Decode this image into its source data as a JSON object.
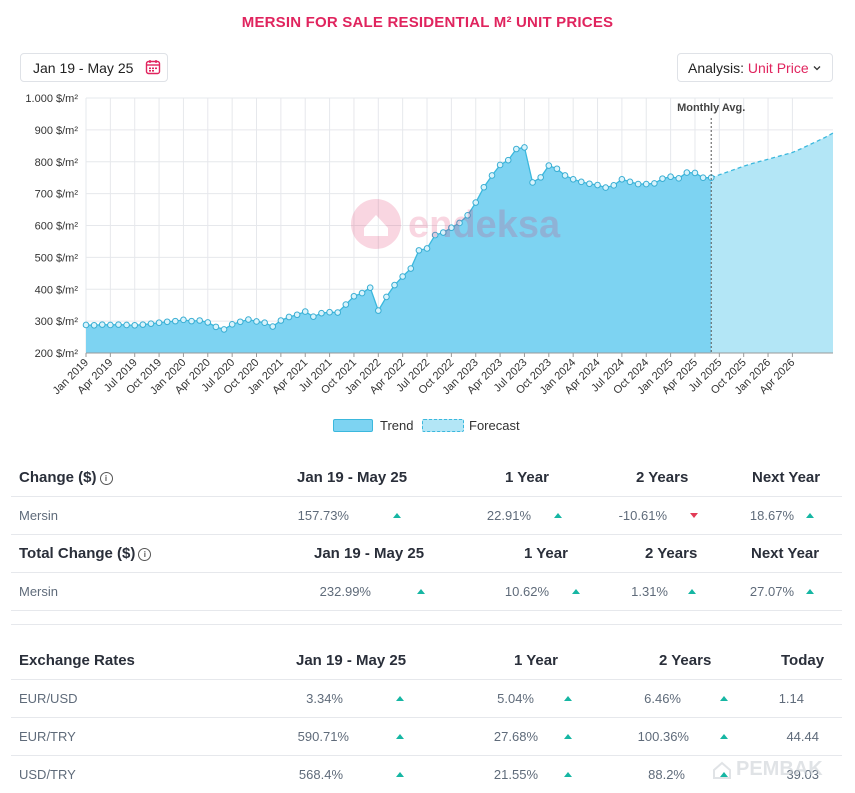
{
  "title": "MERSIN FOR SALE RESIDENTIAL M² UNIT PRICES",
  "date_range": {
    "label": "Jan 19 - May 25",
    "icon": "calendar-icon"
  },
  "analysis": {
    "label": "Analysis:",
    "value": "Unit Price",
    "icon": "chevron-down-icon"
  },
  "colors": {
    "accent": "#e0245e",
    "trend_fill": "#7dd3f2",
    "trend_line": "#3bb8dd",
    "forecast_fill": "#b3e6f6",
    "up": "#16b6a3",
    "down": "#e23b56"
  },
  "watermark": "endeksa",
  "chart_data": {
    "type": "area",
    "ylim": [
      200,
      1000
    ],
    "yticks": [
      200,
      300,
      400,
      500,
      600,
      700,
      800,
      900,
      1000
    ],
    "ytick_labels": [
      "200 $/m²",
      "300 $/m²",
      "400 $/m²",
      "500 $/m²",
      "600 $/m²",
      "700 $/m²",
      "800 $/m²",
      "900 $/m²",
      "1.000 $/m²"
    ],
    "xticks": [
      "Jan 2019",
      "Apr 2019",
      "Jul 2019",
      "Oct 2019",
      "Jan 2020",
      "Apr 2020",
      "Jul 2020",
      "Oct 2020",
      "Jan 2021",
      "Apr 2021",
      "Jul 2021",
      "Oct 2021",
      "Jan 2022",
      "Apr 2022",
      "Jul 2022",
      "Oct 2022",
      "Jan 2023",
      "Apr 2023",
      "Jul 2023",
      "Oct 2023",
      "Jan 2024",
      "Apr 2024",
      "Jul 2024",
      "Oct 2024",
      "Jan 2025",
      "Apr 2025",
      "Jul 2025",
      "Oct 2025",
      "Jan 2026",
      "Apr 2026"
    ],
    "annotation": "Monthly Avg.",
    "series": [
      {
        "name": "Trend",
        "values": [
          288,
          287,
          289,
          288,
          289,
          288,
          287,
          289,
          292,
          295,
          298,
          300,
          304,
          300,
          302,
          296,
          282,
          274,
          290,
          298,
          305,
          299,
          295,
          283,
          302,
          313,
          320,
          330,
          314,
          325,
          328,
          327,
          352,
          378,
          388,
          405,
          333,
          376,
          413,
          440,
          465,
          522,
          528,
          570,
          578,
          593,
          608,
          632,
          672,
          720,
          757,
          790,
          805,
          840,
          845,
          735,
          751,
          788,
          778,
          757,
          745,
          737,
          731,
          727,
          719,
          726,
          745,
          737,
          730,
          730,
          732,
          747,
          753,
          748,
          766,
          765,
          750,
          750
        ]
      },
      {
        "name": "Forecast",
        "values": [
          750,
          759,
          768,
          777,
          786,
          794,
          801,
          808,
          815,
          822,
          829,
          840,
          852,
          864,
          876,
          890
        ]
      }
    ]
  },
  "legend": {
    "trend": "Trend",
    "forecast": "Forecast"
  },
  "change_table": {
    "header": [
      "Change ($)",
      "Jan 19 - May 25",
      "1 Year",
      "2 Years",
      "Next Year"
    ],
    "row": [
      "Mersin",
      "157.73%",
      "22.91%",
      "-10.61%",
      "18.67%"
    ]
  },
  "total_change_table": {
    "header": [
      "Total Change ($)",
      "Jan 19 - May 25",
      "1 Year",
      "2 Years",
      "Next Year"
    ],
    "row": [
      "Mersin",
      "232.99%",
      "10.62%",
      "1.31%",
      "27.07%"
    ]
  },
  "exchange_table": {
    "header": [
      "Exchange Rates",
      "Jan 19 - May 25",
      "1 Year",
      "2 Years",
      "Today"
    ],
    "rows": [
      [
        "EUR/USD",
        "3.34%",
        "5.04%",
        "6.46%",
        "1.14"
      ],
      [
        "EUR/TRY",
        "590.71%",
        "27.68%",
        "100.36%",
        "44.44"
      ],
      [
        "USD/TRY",
        "568.4%",
        "21.55%",
        "88.2%",
        "39.03"
      ]
    ]
  },
  "corner_watermark": "PEMBAK"
}
